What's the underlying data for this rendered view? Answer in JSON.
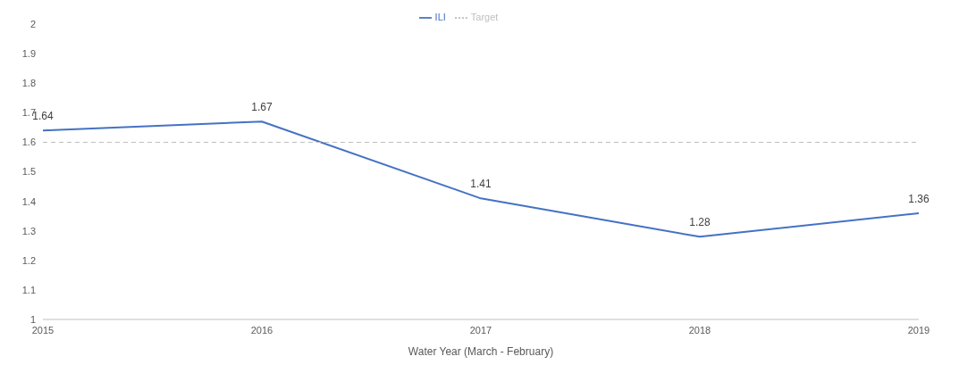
{
  "chart_data": {
    "type": "line",
    "xlabel": "Water Year (March - February)",
    "x": [
      2015,
      2016,
      2017,
      2018,
      2019
    ],
    "series": [
      {
        "name": "ILI",
        "color": "#4472c4",
        "values": [
          1.64,
          1.67,
          1.41,
          1.28,
          1.36
        ],
        "value_labels": [
          "1.64",
          "1.67",
          "1.41",
          "1.28",
          "1.36"
        ]
      },
      {
        "name": "Target",
        "color": "#bfbfbf",
        "values": [
          1.6,
          1.6,
          1.6,
          1.6,
          1.6
        ],
        "line_style": "dashed"
      }
    ],
    "xlim": [
      2015,
      2019
    ],
    "xticks": [
      2015,
      2016,
      2017,
      2018,
      2019
    ],
    "ylim": [
      1,
      2
    ],
    "yticks": [
      1,
      1.1,
      1.2,
      1.3,
      1.4,
      1.5,
      1.6,
      1.7,
      1.8,
      1.9,
      2
    ],
    "grid": false,
    "legend": "top",
    "marker": "none"
  }
}
